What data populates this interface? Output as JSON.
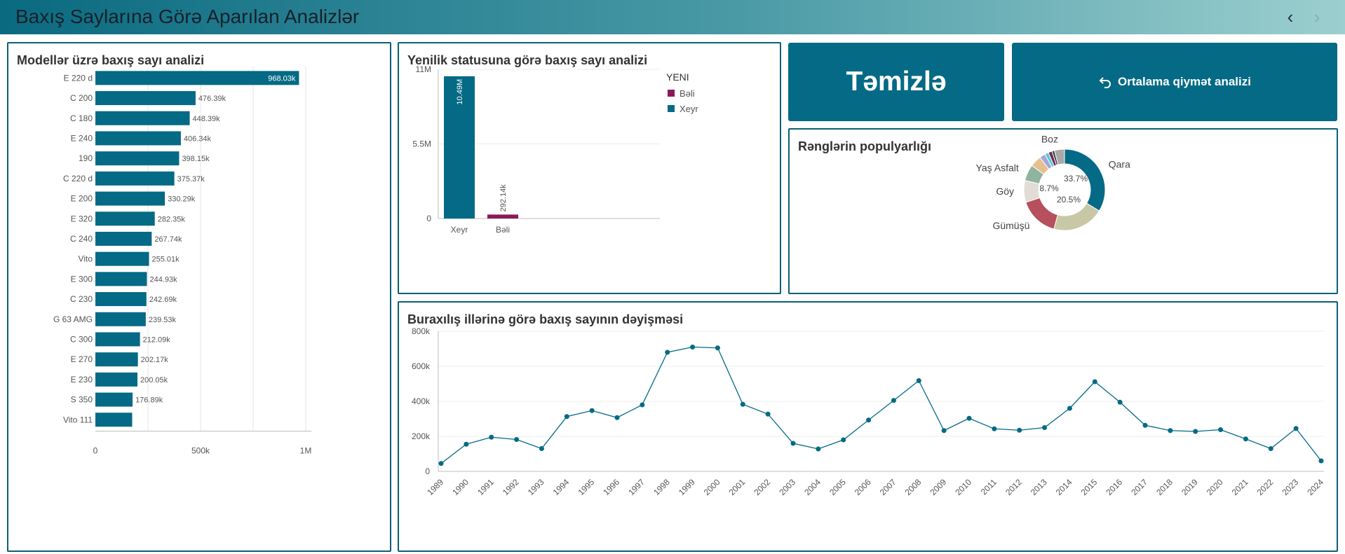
{
  "header": {
    "title": "Baxış Saylarına Görə Aparılan Analizlər",
    "prev_icon": "chevron-left-icon",
    "next_icon": "chevron-right-icon"
  },
  "buttons": {
    "clear_label": "Təmizlə",
    "price_label": "Ortalama qiymət analizi",
    "price_icon": "undo-arrow-icon"
  },
  "colors": {
    "teal": "#046a85",
    "purple": "#8a1a5a"
  },
  "charts": {
    "models": {
      "title": "Modellər üzrə baxış sayı analizi",
      "type": "bar",
      "orientation": "horizontal",
      "categories": [
        "E 220 d",
        "C 200",
        "C 180",
        "E 240",
        "190",
        "C 220 d",
        "E 200",
        "E 320",
        "C 240",
        "Vito",
        "E 300",
        "C 230",
        "G 63 AMG",
        "C 300",
        "E 270",
        "E 230",
        "S 350",
        "Vito 111"
      ],
      "values": [
        968030,
        476390,
        448390,
        406340,
        398150,
        375370,
        330290,
        282350,
        267740,
        255010,
        244930,
        242690,
        239530,
        212090,
        202170,
        200050,
        176890,
        175000
      ],
      "labels": [
        "968.03k",
        "476.39k",
        "448.39k",
        "406.34k",
        "398.15k",
        "375.37k",
        "330.29k",
        "282.35k",
        "267.74k",
        "255.01k",
        "244.93k",
        "242.69k",
        "239.53k",
        "212.09k",
        "202.17k",
        "200.05k",
        "176.89k",
        ""
      ],
      "xlim": [
        0,
        1000000
      ],
      "ticks": [
        {
          "v": 0,
          "label": "0"
        },
        {
          "v": 500000,
          "label": "500k"
        },
        {
          "v": 1000000,
          "label": "1M"
        }
      ],
      "grid_values": [
        250000,
        500000,
        750000,
        1000000
      ]
    },
    "newness": {
      "title": "Yenilik statusuna görə baxış sayı analizi",
      "type": "bar",
      "categories": [
        "Xeyr",
        "Bəli"
      ],
      "values": [
        10490000,
        292140
      ],
      "labels": [
        "10.49M",
        "292.14k"
      ],
      "ylim": [
        0,
        11000000
      ],
      "ticks": [
        {
          "v": 0,
          "label": "0"
        },
        {
          "v": 5500000,
          "label": "5.5M"
        },
        {
          "v": 11000000,
          "label": "11M"
        }
      ],
      "legend": {
        "title": "YENI",
        "items": [
          {
            "label": "Bəli",
            "color": "#8a1a5a"
          },
          {
            "label": "Xeyr",
            "color": "#046a85"
          }
        ]
      },
      "bar_colors": [
        "#046a85",
        "#8a1a5a"
      ]
    },
    "colors_pie": {
      "title": "Rənglərin populyarlığı",
      "type": "pie",
      "segments": [
        {
          "label": "Qara",
          "value": 33.7,
          "color": "#046a85"
        },
        {
          "label": "",
          "value": 20.5,
          "color": "#c8c8a6"
        },
        {
          "label": "Gümüşü",
          "value": 15.8,
          "color": "#b5505c"
        },
        {
          "label": "Göy",
          "value": 8.7,
          "color": "#e2dcd6"
        },
        {
          "label": "Yaş Asfalt",
          "value": 6.5,
          "color": "#8fb4a0"
        },
        {
          "label": "",
          "value": 4.5,
          "color": "#e6c08e"
        },
        {
          "label": "",
          "value": 2.3,
          "color": "#9fa8d6"
        },
        {
          "label": "",
          "value": 1.5,
          "color": "#5cc6d6"
        },
        {
          "label": "",
          "value": 1.5,
          "color": "#6a2a5a"
        },
        {
          "label": "",
          "value": 1.0,
          "color": "#3d3d3d"
        },
        {
          "label": "Boz",
          "value": 4.0,
          "color": "#a9a9a9"
        }
      ],
      "pct_labels": [
        {
          "text": "33.7%"
        },
        {
          "text": "20.5%"
        },
        {
          "text": "8.7%"
        }
      ]
    },
    "years": {
      "title": "Buraxılış illərinə görə baxış sayının dəyişməsi",
      "type": "line",
      "x": [
        "1989",
        "1990",
        "1991",
        "1992",
        "1993",
        "1994",
        "1995",
        "1996",
        "1997",
        "1998",
        "1999",
        "2000",
        "2001",
        "2002",
        "2003",
        "2004",
        "2005",
        "2006",
        "2007",
        "2008",
        "2009",
        "2010",
        "2011",
        "2012",
        "2013",
        "2014",
        "2015",
        "2016",
        "2017",
        "2018",
        "2019",
        "2020",
        "2021",
        "2022",
        "2023",
        "2024"
      ],
      "values": [
        45000,
        155000,
        195000,
        182000,
        130000,
        313000,
        347000,
        307000,
        380000,
        680000,
        710000,
        705000,
        383000,
        327000,
        160000,
        128000,
        180000,
        293000,
        405000,
        518000,
        233000,
        303000,
        243000,
        235000,
        250000,
        360000,
        512000,
        395000,
        263000,
        233000,
        228000,
        238000,
        185000,
        130000,
        245000,
        60000
      ],
      "ylim": [
        0,
        800000
      ],
      "ticks": [
        {
          "v": 0,
          "label": "0"
        },
        {
          "v": 200000,
          "label": "200k"
        },
        {
          "v": 400000,
          "label": "400k"
        },
        {
          "v": 600000,
          "label": "600k"
        },
        {
          "v": 800000,
          "label": "800k"
        }
      ],
      "color": "#046a85"
    }
  }
}
